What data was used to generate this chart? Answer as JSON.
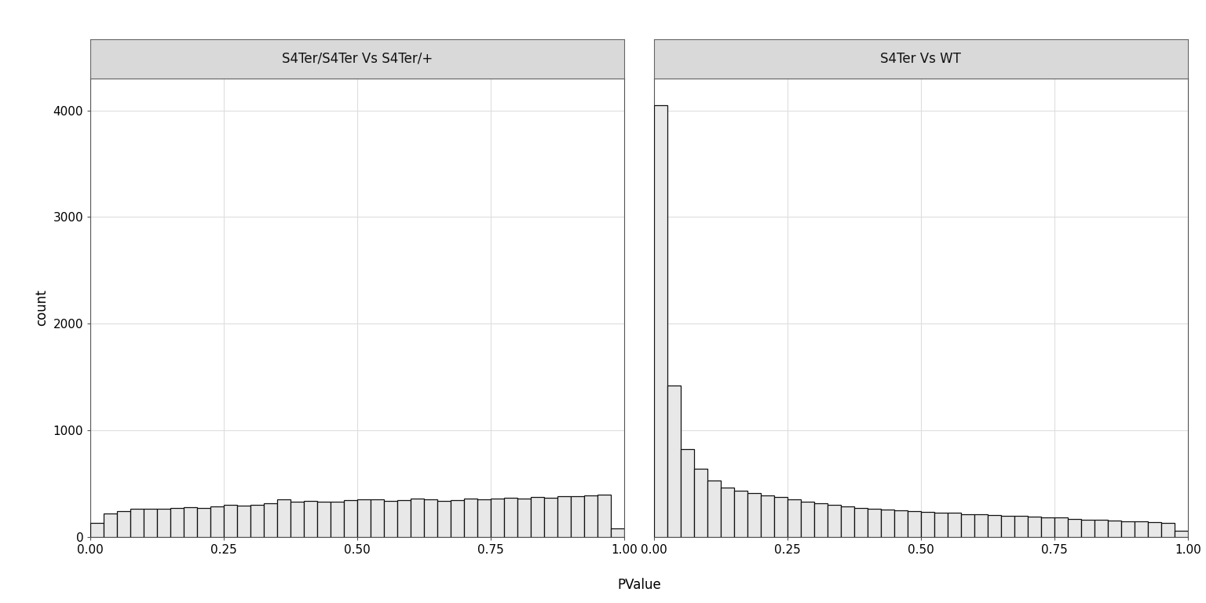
{
  "panel1_title": "S4Ter/S4Ter Vs S4Ter/+",
  "panel2_title": "S4Ter Vs WT",
  "xlabel": "PValue",
  "ylabel": "count",
  "ylim_max": 4300,
  "yticks": [
    0,
    1000,
    2000,
    3000,
    4000
  ],
  "xlim": [
    0,
    1.0
  ],
  "xticks": [
    0.0,
    0.25,
    0.5,
    0.75,
    1.0
  ],
  "n_bins": 40,
  "bin_width": 0.025,
  "bar_fill": "#E8E8E8",
  "bar_edge": "#111111",
  "panel_bg": "#FFFFFF",
  "fig_bg": "#FFFFFF",
  "strip_bg": "#D9D9D9",
  "strip_border": "#666666",
  "grid_color": "#DEDEDE",
  "grid_linewidth": 0.8,
  "panel1_counts": [
    130,
    215,
    240,
    260,
    265,
    262,
    268,
    278,
    272,
    283,
    297,
    288,
    302,
    312,
    352,
    328,
    338,
    328,
    328,
    342,
    348,
    348,
    338,
    342,
    358,
    352,
    338,
    342,
    358,
    352,
    358,
    362,
    358,
    372,
    368,
    382,
    378,
    388,
    392,
    75
  ],
  "panel2_counts": [
    4050,
    1420,
    820,
    640,
    530,
    460,
    430,
    410,
    385,
    370,
    350,
    330,
    310,
    300,
    285,
    270,
    260,
    255,
    248,
    242,
    232,
    227,
    222,
    212,
    207,
    202,
    197,
    192,
    187,
    182,
    177,
    167,
    162,
    157,
    152,
    147,
    142,
    137,
    132,
    55
  ],
  "title_fontsize": 12,
  "axis_label_fontsize": 12,
  "tick_fontsize": 11,
  "bar_linewidth": 0.9,
  "outer_border_color": "#555555",
  "outer_border_linewidth": 0.8
}
